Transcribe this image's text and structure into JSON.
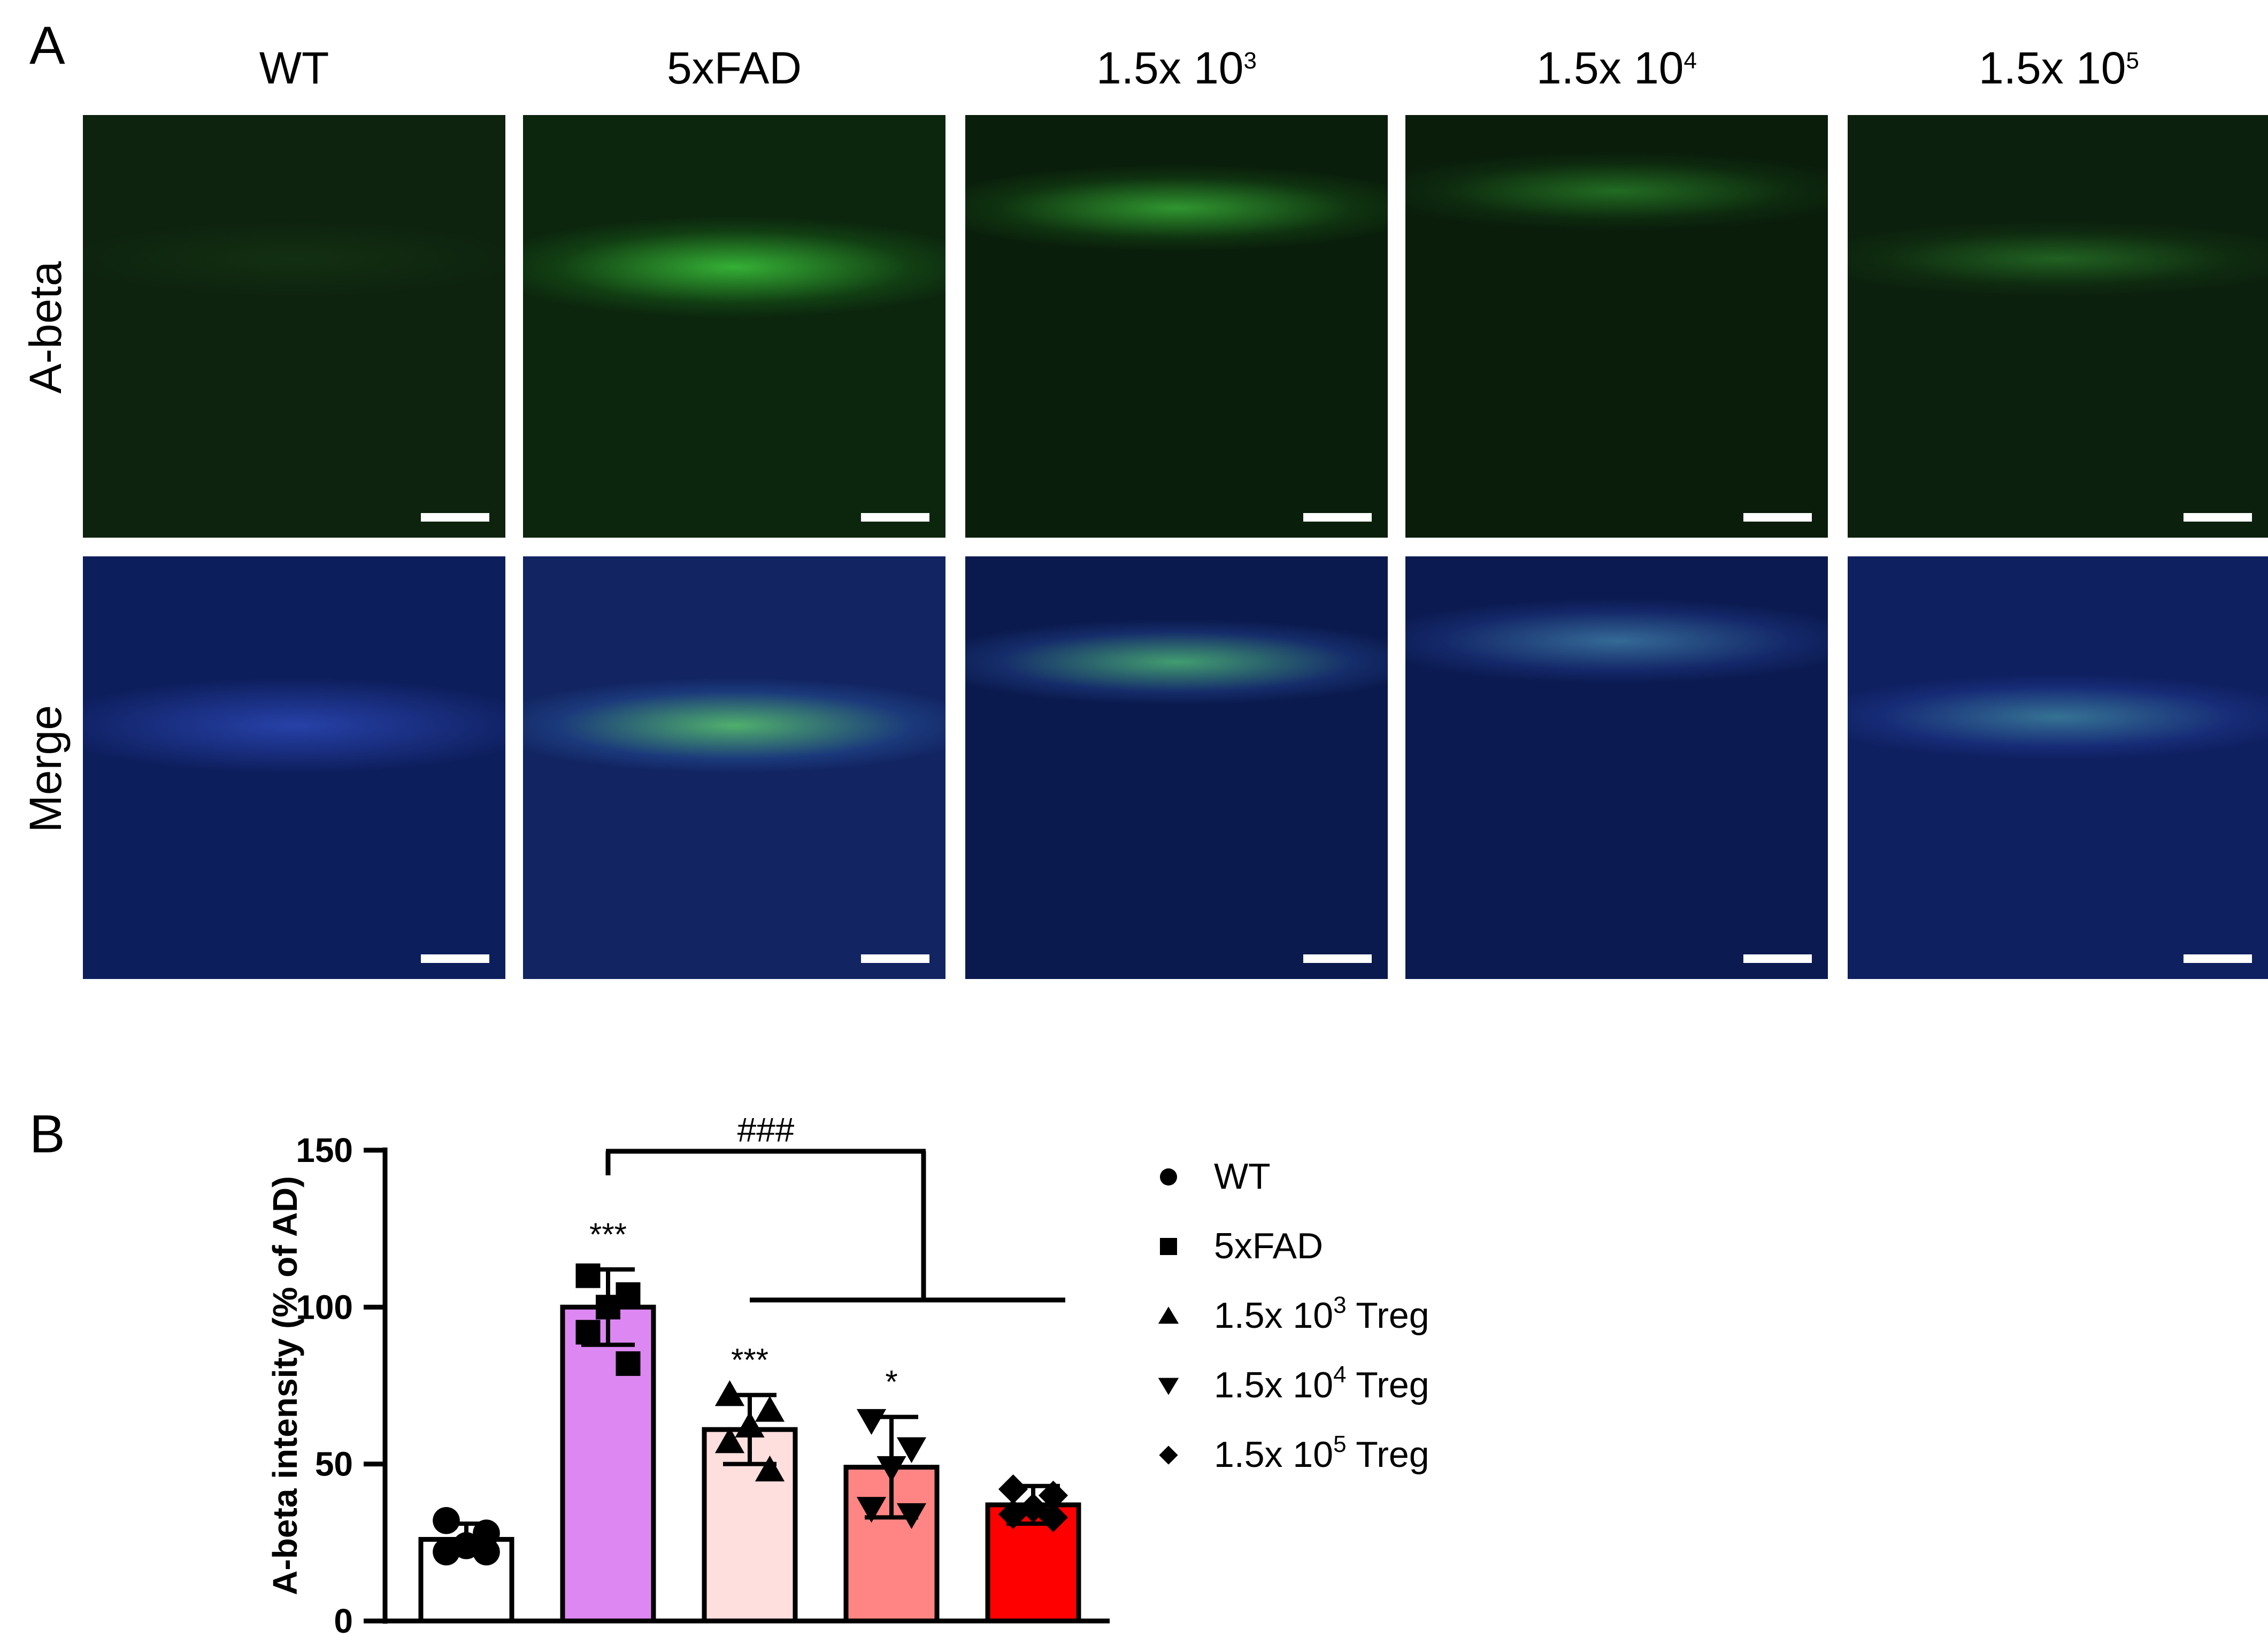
{
  "panel_a": {
    "letter": "A",
    "columns": [
      {
        "label_base": "WT",
        "label_exp": ""
      },
      {
        "label_base": "5xFAD",
        "label_exp": ""
      },
      {
        "label_base": "1.5x 10",
        "label_exp": "3"
      },
      {
        "label_base": "1.5x 10",
        "label_exp": "4"
      },
      {
        "label_base": "1.5x 10",
        "label_exp": "5"
      }
    ],
    "rows": [
      {
        "label": "A-beta"
      },
      {
        "label": "Merge"
      }
    ]
  },
  "panel_b": {
    "letter": "B"
  },
  "chart_data": {
    "type": "bar",
    "categories": [
      "WT",
      "5xFAD",
      "1.5x 10^3 Treg",
      "1.5x 10^4 Treg",
      "1.5x 10^5 Treg"
    ],
    "values": [
      26,
      100,
      61,
      49,
      37
    ],
    "errors": [
      5,
      12,
      11,
      16,
      6
    ],
    "points": [
      [
        32,
        28,
        24,
        22,
        22
      ],
      [
        110,
        104,
        100,
        92,
        82
      ],
      [
        72,
        67,
        62,
        57,
        48
      ],
      [
        64,
        55,
        49,
        36,
        34
      ],
      [
        42,
        40,
        36,
        34,
        33
      ]
    ],
    "markers": [
      "circle",
      "square",
      "triangle-up",
      "triangle-down",
      "diamond"
    ],
    "colors": [
      "#ffffff",
      "#dd88f2",
      "#ffdede",
      "#ff8484",
      "#ff0000"
    ],
    "ylabel": "A-beta intensity (% of AD)",
    "ylim": [
      0,
      150
    ],
    "yticks": [
      0,
      50,
      100,
      150
    ],
    "grid": false,
    "annotations": [
      {
        "category": "5xFAD",
        "text": "***"
      },
      {
        "category": "1.5x 10^3 Treg",
        "text": "***"
      },
      {
        "category": "1.5x 10^4 Treg",
        "text": "*"
      }
    ],
    "significance_bracket": {
      "text": "###",
      "from": "5xFAD",
      "to": [
        "1.5x 10^3 Treg",
        "1.5x 10^4 Treg",
        "1.5x 10^5 Treg"
      ]
    },
    "legend": {
      "position": "right",
      "entries": [
        {
          "base": "WT",
          "exp": "",
          "suffix": "",
          "marker": "circle"
        },
        {
          "base": "5xFAD",
          "exp": "",
          "suffix": "",
          "marker": "square"
        },
        {
          "base": "1.5x 10",
          "exp": "3",
          "suffix": " Treg",
          "marker": "triangle-up"
        },
        {
          "base": "1.5x 10",
          "exp": "4",
          "suffix": " Treg",
          "marker": "triangle-down"
        },
        {
          "base": "1.5x 10",
          "exp": "5",
          "suffix": " Treg",
          "marker": "diamond"
        }
      ]
    }
  }
}
